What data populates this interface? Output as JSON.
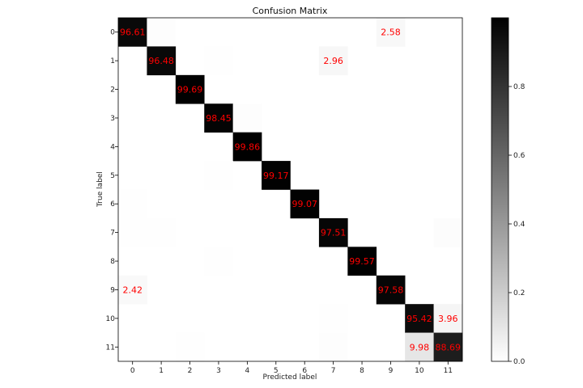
{
  "chart_data": {
    "type": "heatmap",
    "title": "Confusion Matrix",
    "xlabel": "Predicted label",
    "ylabel": "True label",
    "x_categories": [
      "0",
      "1",
      "2",
      "3",
      "4",
      "5",
      "6",
      "7",
      "8",
      "9",
      "10",
      "11"
    ],
    "y_categories": [
      "0",
      "1",
      "2",
      "3",
      "4",
      "5",
      "6",
      "7",
      "8",
      "9",
      "10",
      "11"
    ],
    "colormap": "greys",
    "value_range": [
      0,
      1
    ],
    "colorbar_ticks": [
      "0.0",
      "0.2",
      "0.4",
      "0.6",
      "0.8"
    ],
    "colorbar_tick_values": [
      0.0,
      0.2,
      0.4,
      0.6,
      0.8
    ],
    "cells": [
      {
        "row": 0,
        "col": 0,
        "value": 0.9661,
        "label": "96.61"
      },
      {
        "row": 0,
        "col": 1,
        "value": 0.008,
        "label": ""
      },
      {
        "row": 0,
        "col": 9,
        "value": 0.0258,
        "label": "2.58"
      },
      {
        "row": 1,
        "col": 1,
        "value": 0.9648,
        "label": "96.48"
      },
      {
        "row": 1,
        "col": 3,
        "value": 0.005,
        "label": ""
      },
      {
        "row": 1,
        "col": 7,
        "value": 0.0296,
        "label": "2.96"
      },
      {
        "row": 2,
        "col": 2,
        "value": 0.9969,
        "label": "99.69"
      },
      {
        "row": 3,
        "col": 3,
        "value": 0.9845,
        "label": "98.45"
      },
      {
        "row": 3,
        "col": 4,
        "value": 0.006,
        "label": ""
      },
      {
        "row": 4,
        "col": 4,
        "value": 0.9986,
        "label": "99.86"
      },
      {
        "row": 5,
        "col": 3,
        "value": 0.005,
        "label": ""
      },
      {
        "row": 5,
        "col": 5,
        "value": 0.9917,
        "label": "99.17"
      },
      {
        "row": 6,
        "col": 0,
        "value": 0.005,
        "label": ""
      },
      {
        "row": 6,
        "col": 6,
        "value": 0.9907,
        "label": "99.07"
      },
      {
        "row": 7,
        "col": 0,
        "value": 0.004,
        "label": ""
      },
      {
        "row": 7,
        "col": 1,
        "value": 0.005,
        "label": ""
      },
      {
        "row": 7,
        "col": 7,
        "value": 0.9751,
        "label": "97.51"
      },
      {
        "row": 7,
        "col": 11,
        "value": 0.01,
        "label": ""
      },
      {
        "row": 8,
        "col": 3,
        "value": 0.004,
        "label": ""
      },
      {
        "row": 8,
        "col": 8,
        "value": 0.9957,
        "label": "99.57"
      },
      {
        "row": 9,
        "col": 0,
        "value": 0.0242,
        "label": "2.42"
      },
      {
        "row": 9,
        "col": 9,
        "value": 0.9758,
        "label": "97.58"
      },
      {
        "row": 10,
        "col": 7,
        "value": 0.005,
        "label": ""
      },
      {
        "row": 10,
        "col": 10,
        "value": 0.9542,
        "label": "95.42"
      },
      {
        "row": 10,
        "col": 11,
        "value": 0.0396,
        "label": "3.96"
      },
      {
        "row": 11,
        "col": 2,
        "value": 0.004,
        "label": ""
      },
      {
        "row": 11,
        "col": 7,
        "value": 0.006,
        "label": ""
      },
      {
        "row": 11,
        "col": 10,
        "value": 0.0998,
        "label": "9.98"
      },
      {
        "row": 11,
        "col": 11,
        "value": 0.8869,
        "label": "88.69"
      }
    ],
    "label_color": "#ff0000"
  }
}
